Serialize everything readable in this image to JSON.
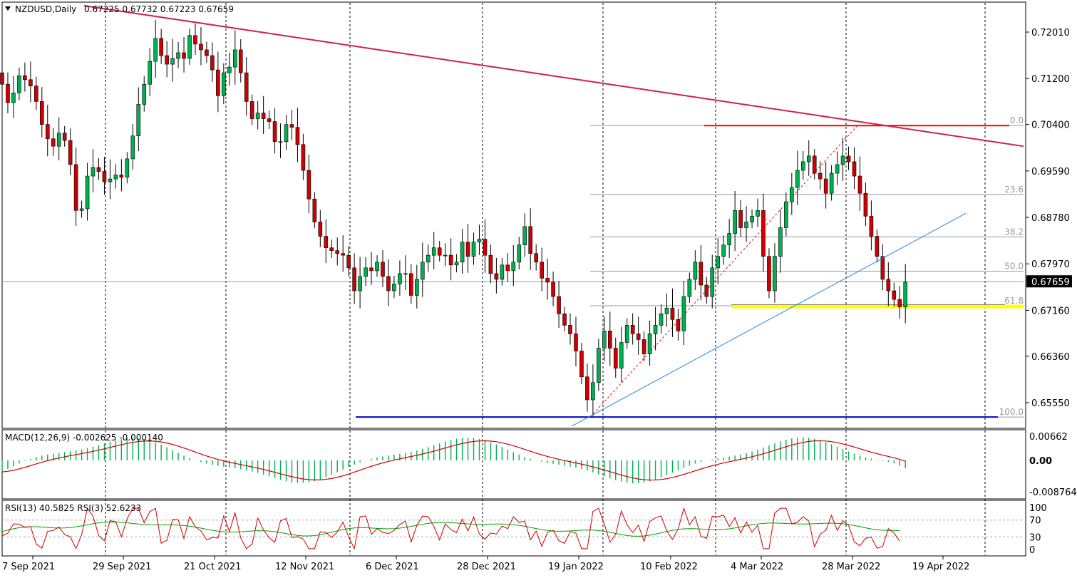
{
  "header": {
    "symbol": "NZDUSD,Daily",
    "ohlc": "0.67225 0.67732 0.67223 0.67659",
    "menu_arrow": "triangle-down-icon"
  },
  "price_scale": {
    "ticks": [
      "0.72010",
      "0.71200",
      "0.70400",
      "0.69590",
      "0.68780",
      "0.67970",
      "0.67160",
      "0.66360",
      "0.65550"
    ],
    "current_price": "0.67659"
  },
  "macd": {
    "label": "MACD(12,26,9) -0.002625 -0.000140",
    "ticks": [
      "0.00662",
      "0.00",
      "-0.008764"
    ]
  },
  "rsi": {
    "label": "RSI(13) 40.5825  RSI(3) 52.6233",
    "ticks": [
      "100",
      "70",
      "30",
      "0"
    ]
  },
  "fibonacci_labels": [
    "0.0",
    "23.6",
    "38.2",
    "50.0",
    "61.8",
    "100.0"
  ],
  "time_axis": [
    "7 Sep 2021",
    "29 Sep 2021",
    "21 Oct 2021",
    "12 Nov 2021",
    "6 Dec 2021",
    "28 Dec 2021",
    "19 Jan 2022",
    "10 Feb 2022",
    "4 Mar 2022",
    "28 Mar 2022",
    "19 Apr 2022"
  ],
  "colors": {
    "bull": "#00b050",
    "bear": "#d00000",
    "wick": "#000000",
    "downtrend": "#d2204a",
    "uptrend": "#1e88e5",
    "resistance": "#ff0000",
    "support_zone": "#ffff00",
    "low_line": "#0000cc",
    "macd_hist": "#00b050",
    "macd_signal": "#d00000",
    "rsi13": "#00a000",
    "rsi3": "#d00000"
  },
  "chart_data": {
    "type": "candlestick",
    "symbol": "NZDUSD",
    "timeframe": "Daily",
    "last": {
      "open": 0.67225,
      "high": 0.67732,
      "low": 0.67223,
      "close": 0.67659
    },
    "ylim": [
      0.6508,
      0.7255
    ],
    "closes": [
      0.711,
      0.7078,
      0.7095,
      0.7125,
      0.7118,
      0.7107,
      0.708,
      0.704,
      0.7015,
      0.7002,
      0.7025,
      0.7012,
      0.697,
      0.689,
      0.6893,
      0.695,
      0.6965,
      0.6958,
      0.694,
      0.6945,
      0.6952,
      0.6948,
      0.698,
      0.702,
      0.7075,
      0.711,
      0.715,
      0.719,
      0.716,
      0.7145,
      0.7155,
      0.7165,
      0.7155,
      0.7195,
      0.718,
      0.717,
      0.716,
      0.7135,
      0.709,
      0.713,
      0.714,
      0.717,
      0.713,
      0.708,
      0.705,
      0.706,
      0.705,
      0.7045,
      0.701,
      0.701,
      0.704,
      0.7035,
      0.7005,
      0.696,
      0.691,
      0.687,
      0.6845,
      0.6825,
      0.682,
      0.6815,
      0.6812,
      0.679,
      0.675,
      0.6775,
      0.679,
      0.6785,
      0.68,
      0.6775,
      0.675,
      0.6762,
      0.678,
      0.678,
      0.6742,
      0.677,
      0.68,
      0.6812,
      0.6825,
      0.6812,
      0.6812,
      0.6795,
      0.68,
      0.6835,
      0.681,
      0.6835,
      0.684,
      0.6812,
      0.678,
      0.677,
      0.6795,
      0.6785,
      0.68,
      0.683,
      0.6862,
      0.6815,
      0.68,
      0.6772,
      0.6765,
      0.674,
      0.671,
      0.669,
      0.6675,
      0.6645,
      0.66,
      0.656,
      0.659,
      0.665,
      0.668,
      0.665,
      0.6615,
      0.666,
      0.669,
      0.6675,
      0.6665,
      0.664,
      0.6675,
      0.669,
      0.671,
      0.672,
      0.67,
      0.668,
      0.674,
      0.677,
      0.68,
      0.676,
      0.674,
      0.679,
      0.681,
      0.683,
      0.685,
      0.689,
      0.686,
      0.687,
      0.688,
      0.689,
      0.681,
      0.675,
      0.681,
      0.686,
      0.6905,
      0.693,
      0.696,
      0.6975,
      0.6985,
      0.6955,
      0.6945,
      0.692,
      0.6955,
      0.697,
      0.6985,
      0.6975,
      0.695,
      0.692,
      0.688,
      0.6845,
      0.681,
      0.677,
      0.675,
      0.6735,
      0.6722,
      0.6765
    ],
    "opens": [
      0.713,
      0.711,
      0.7078,
      0.7095,
      0.7125,
      0.7118,
      0.7107,
      0.708,
      0.704,
      0.7015,
      0.7002,
      0.7025,
      0.7012,
      0.697,
      0.689,
      0.6893,
      0.695,
      0.6965,
      0.6958,
      0.694,
      0.6945,
      0.6952,
      0.6948,
      0.698,
      0.702,
      0.7075,
      0.711,
      0.715,
      0.719,
      0.716,
      0.7145,
      0.7155,
      0.7165,
      0.7155,
      0.7195,
      0.718,
      0.717,
      0.716,
      0.7135,
      0.709,
      0.713,
      0.714,
      0.717,
      0.713,
      0.708,
      0.705,
      0.706,
      0.705,
      0.7045,
      0.701,
      0.701,
      0.704,
      0.7035,
      0.7005,
      0.696,
      0.691,
      0.687,
      0.6845,
      0.6825,
      0.682,
      0.6815,
      0.6812,
      0.679,
      0.675,
      0.6775,
      0.679,
      0.6785,
      0.68,
      0.6775,
      0.675,
      0.6762,
      0.678,
      0.678,
      0.6742,
      0.677,
      0.68,
      0.6812,
      0.6825,
      0.6812,
      0.6812,
      0.6795,
      0.68,
      0.6835,
      0.681,
      0.6835,
      0.684,
      0.6812,
      0.678,
      0.677,
      0.6795,
      0.6785,
      0.68,
      0.683,
      0.6862,
      0.6815,
      0.68,
      0.6772,
      0.6765,
      0.674,
      0.671,
      0.669,
      0.6675,
      0.6645,
      0.66,
      0.656,
      0.659,
      0.665,
      0.668,
      0.665,
      0.6615,
      0.666,
      0.669,
      0.6675,
      0.6665,
      0.664,
      0.6675,
      0.669,
      0.671,
      0.672,
      0.67,
      0.668,
      0.674,
      0.677,
      0.68,
      0.676,
      0.674,
      0.679,
      0.681,
      0.683,
      0.685,
      0.689,
      0.686,
      0.687,
      0.688,
      0.689,
      0.681,
      0.675,
      0.681,
      0.686,
      0.6905,
      0.693,
      0.696,
      0.6975,
      0.6985,
      0.6955,
      0.6945,
      0.692,
      0.6955,
      0.697,
      0.6985,
      0.6975,
      0.695,
      0.692,
      0.688,
      0.6845,
      0.681,
      0.677,
      0.675,
      0.6735,
      0.6722
    ],
    "fibonacci": {
      "high": 0.7038,
      "low": 0.653,
      "levels": [
        {
          "label": "0.0",
          "price": 0.7038
        },
        {
          "label": "23.6",
          "price": 0.6918
        },
        {
          "label": "38.2",
          "price": 0.6844
        },
        {
          "label": "50.0",
          "price": 0.6784
        },
        {
          "label": "61.8",
          "price": 0.6724
        },
        {
          "label": "100.0",
          "price": 0.653
        }
      ]
    },
    "horizontal_lines": {
      "resistance": 0.7038,
      "support": 0.6722,
      "low": 0.653
    },
    "trendlines": {
      "downtrend": {
        "from": {
          "date": "6 Oct 2021",
          "price": 0.7255
        },
        "to": {
          "date": "26 Apr 2022",
          "price": 0.7
        }
      },
      "uptrend": {
        "from": {
          "date": "19 Jan 2022",
          "price": 0.6519
        },
        "to": {
          "date": "22 Apr 2022",
          "price": 0.6885
        }
      }
    },
    "macd": {
      "params": "12,26,9",
      "value": -0.002625,
      "signal": -0.00014,
      "ylim": [
        -0.008764,
        0.00662
      ]
    },
    "rsi": {
      "rsi13": 40.5825,
      "rsi3": 52.6233,
      "levels": [
        70,
        30
      ],
      "ylim": [
        0,
        100
      ]
    }
  }
}
